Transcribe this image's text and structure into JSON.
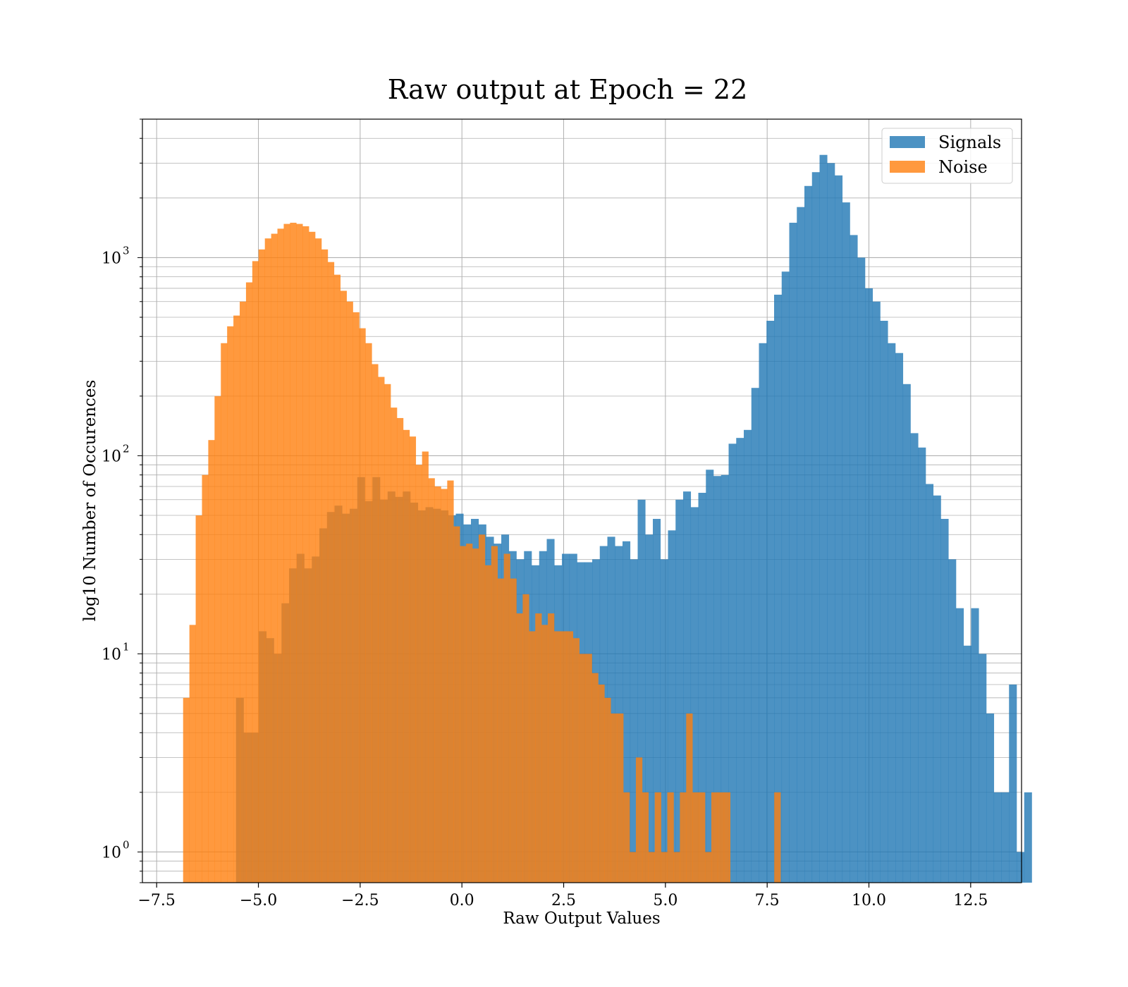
{
  "chart_data": {
    "type": "bar",
    "title": "Raw output at Epoch = 22",
    "xlabel": "Raw Output Values",
    "ylabel": "log10 Number of Occurences",
    "yscale": "log",
    "xlim": [
      -7.85,
      13.75
    ],
    "ylim": [
      0.7,
      5000
    ],
    "grid": true,
    "legend_position": "top-right",
    "x_ticks": [
      -7.5,
      -5.0,
      -2.5,
      0.0,
      2.5,
      5.0,
      7.5,
      10.0,
      12.5
    ],
    "x_tick_labels": [
      "−7.5",
      "−5.0",
      "−2.5",
      "0.0",
      "2.5",
      "5.0",
      "7.5",
      "10.0",
      "12.5"
    ],
    "y_ticks": [
      1,
      10,
      100,
      1000
    ],
    "y_tick_labels": [
      "10",
      "10",
      "10",
      "10"
    ],
    "y_tick_exponents": [
      "0",
      "1",
      "2",
      "3"
    ],
    "series": [
      {
        "name": "Signals",
        "color": "#1f77b4",
        "opacity": 0.8,
        "bin_start": -5.55,
        "bin_width": 0.1862,
        "values": [
          6,
          4,
          4,
          13,
          12,
          10,
          18,
          27,
          32,
          27,
          31,
          43,
          52,
          56,
          51,
          54,
          78,
          59,
          78,
          60,
          66,
          62,
          66,
          58,
          53,
          55,
          54,
          53,
          50,
          51,
          45,
          48,
          45,
          39,
          36,
          40,
          33,
          30,
          33,
          28,
          33,
          38,
          28,
          32,
          32,
          29,
          29,
          30,
          35,
          39,
          35,
          37,
          30,
          60,
          40,
          48,
          30,
          42,
          60,
          66,
          55,
          65,
          85,
          79,
          80,
          115,
          123,
          135,
          220,
          370,
          480,
          650,
          850,
          1500,
          1800,
          2300,
          2700,
          3300,
          3000,
          2600,
          1900,
          1300,
          1000,
          700,
          600,
          480,
          370,
          330,
          230,
          130,
          110,
          72,
          63,
          48,
          30,
          17,
          11,
          17,
          10,
          5,
          2,
          2,
          7,
          1,
          2
        ]
      },
      {
        "name": "Noise",
        "color": "#ff7f0e",
        "opacity": 0.8,
        "bin_start": -6.85,
        "bin_width": 0.1545,
        "values": [
          6,
          14,
          50,
          80,
          120,
          200,
          370,
          450,
          510,
          600,
          750,
          960,
          1100,
          1250,
          1320,
          1400,
          1480,
          1500,
          1480,
          1440,
          1350,
          1250,
          1100,
          950,
          820,
          680,
          600,
          530,
          440,
          370,
          290,
          250,
          230,
          175,
          155,
          135,
          125,
          90,
          105,
          77,
          70,
          68,
          75,
          44,
          35,
          36,
          34,
          40,
          28,
          35,
          24,
          32,
          24,
          16,
          20,
          13,
          16,
          14,
          16,
          13,
          13,
          13,
          12,
          10,
          10,
          8,
          7,
          6,
          5,
          5,
          2,
          1,
          3,
          2,
          1,
          2,
          1,
          2,
          1,
          2,
          5,
          2,
          2,
          1,
          2,
          2,
          2,
          0,
          0,
          0,
          0,
          0,
          0,
          0,
          2,
          0
        ]
      }
    ]
  }
}
